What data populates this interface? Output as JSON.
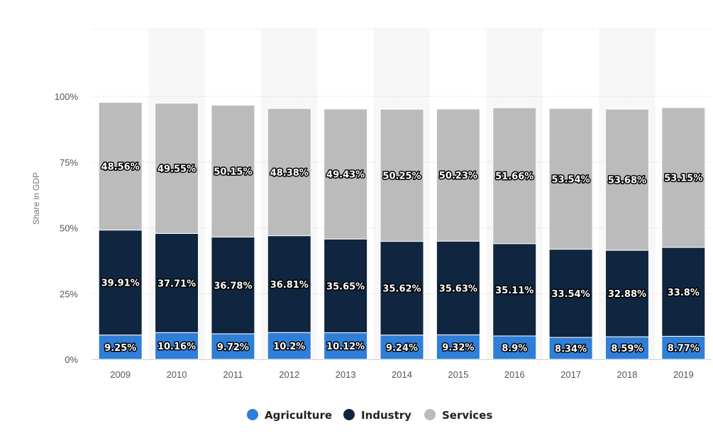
{
  "chart_data": {
    "type": "bar",
    "stacked": true,
    "ylabel": "Share in GDP",
    "y_ticks": [
      "0%",
      "25%",
      "50%",
      "75%",
      "100%"
    ],
    "ylim": [
      0,
      100
    ],
    "categories": [
      "2009",
      "2010",
      "2011",
      "2012",
      "2013",
      "2014",
      "2015",
      "2016",
      "2017",
      "2018",
      "2019"
    ],
    "series": [
      {
        "name": "Agriculture",
        "color": "#2f7ed8",
        "values": [
          9.25,
          10.16,
          9.72,
          10.2,
          10.12,
          9.24,
          9.32,
          8.9,
          8.34,
          8.59,
          8.77
        ],
        "labels": [
          "9.25%",
          "10.16%",
          "9.72%",
          "10.2%",
          "10.12%",
          "9.24%",
          "9.32%",
          "8.9%",
          "8.34%",
          "8.59%",
          "8.77%"
        ]
      },
      {
        "name": "Industry",
        "color": "#10253f",
        "values": [
          39.91,
          37.71,
          36.78,
          36.81,
          35.65,
          35.62,
          35.63,
          35.11,
          33.54,
          32.88,
          33.8
        ],
        "labels": [
          "39.91%",
          "37.71%",
          "36.78%",
          "36.81%",
          "35.65%",
          "35.62%",
          "35.63%",
          "35.11%",
          "33.54%",
          "32.88%",
          "33.8%"
        ]
      },
      {
        "name": "Services",
        "color": "#bbbbbb",
        "values": [
          48.56,
          49.55,
          50.15,
          48.38,
          49.43,
          50.25,
          50.23,
          51.66,
          53.54,
          53.68,
          53.15
        ],
        "labels": [
          "48.56%",
          "49.55%",
          "50.15%",
          "48.38%",
          "49.43%",
          "50.25%",
          "50.23%",
          "51.66%",
          "53.54%",
          "53.68%",
          "53.15%"
        ]
      }
    ],
    "grid": true,
    "legend_position": "bottom-center"
  }
}
